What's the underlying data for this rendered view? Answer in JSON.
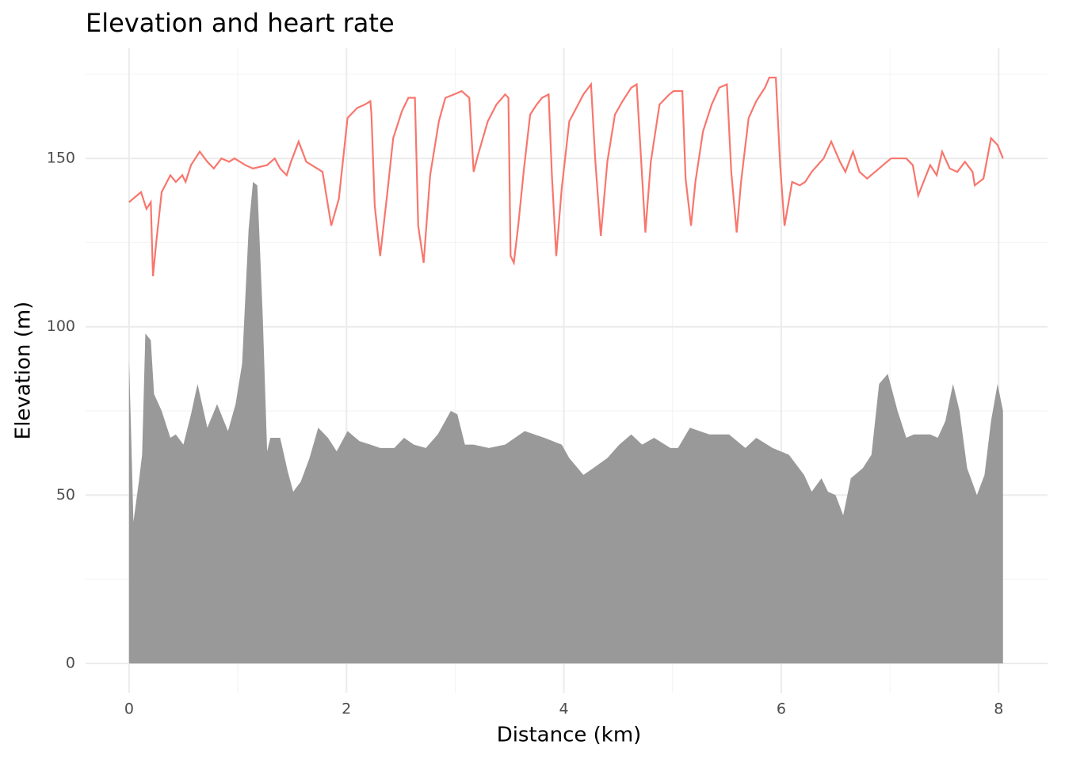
{
  "chart_data": {
    "type": "area-line",
    "title": "Elevation and heart rate",
    "x_label": "Distance (km)",
    "y_label": "Elevation (m)",
    "xlim": [
      -0.4,
      8.45
    ],
    "ylim": [
      -8.7,
      182.7
    ],
    "xticks": [
      0,
      2,
      4,
      6,
      8
    ],
    "yticks": [
      0,
      50,
      100,
      150
    ],
    "xticks_minor": [
      1,
      3,
      5,
      7
    ],
    "yticks_minor": [
      25,
      75,
      125,
      175
    ],
    "grid": true,
    "series": [
      {
        "type": "area",
        "color": "#999999",
        "x": [
          0,
          0.02,
          0.04,
          0.09,
          0.12,
          0.15,
          0.2,
          0.23,
          0.3,
          0.38,
          0.43,
          0.5,
          0.57,
          0.63,
          0.72,
          0.81,
          0.91,
          0.98,
          1.04,
          1.1,
          1.14,
          1.18,
          1.23,
          1.27,
          1.3,
          1.39,
          1.46,
          1.51,
          1.58,
          1.66,
          1.74,
          1.83,
          1.91,
          2.01,
          2.12,
          2.22,
          2.31,
          2.44,
          2.53,
          2.62,
          2.73,
          2.84,
          2.96,
          3.02,
          3.09,
          3.17,
          3.31,
          3.46,
          3.64,
          3.82,
          3.98,
          4.05,
          4.18,
          4.27,
          4.4,
          4.51,
          4.62,
          4.72,
          4.83,
          4.98,
          5.05,
          5.16,
          5.34,
          5.52,
          5.67,
          5.77,
          5.92,
          6.07,
          6.21,
          6.28,
          6.37,
          6.43,
          6.5,
          6.57,
          6.64,
          6.75,
          6.83,
          6.9,
          6.98,
          7.07,
          7.15,
          7.22,
          7.3,
          7.37,
          7.44,
          7.51,
          7.58,
          7.64,
          7.71,
          7.8,
          7.87,
          7.93,
          7.99,
          8.04
        ],
        "values": [
          90,
          67,
          42,
          54,
          62,
          98,
          96,
          80,
          75,
          67,
          68,
          65,
          74,
          83,
          70,
          77,
          69,
          77,
          89,
          129,
          143,
          142,
          103,
          63,
          67,
          67,
          57,
          51,
          54,
          61,
          70,
          67,
          63,
          69,
          66,
          65,
          64,
          64,
          67,
          65,
          64,
          68,
          75,
          74,
          65,
          65,
          64,
          65,
          69,
          67,
          65,
          61,
          56,
          58,
          61,
          65,
          68,
          65,
          67,
          64,
          64,
          70,
          68,
          68,
          64,
          67,
          64,
          62,
          56,
          51,
          55,
          51,
          50,
          44,
          55,
          58,
          62,
          83,
          86,
          75,
          67,
          68,
          68,
          68,
          67,
          72,
          83,
          75,
          58,
          50,
          56,
          72,
          83,
          75
        ]
      },
      {
        "type": "line",
        "color": "#F8766D",
        "x": [
          0,
          0.11,
          0.14,
          0.16,
          0.2,
          0.22,
          0.25,
          0.3,
          0.38,
          0.43,
          0.49,
          0.52,
          0.57,
          0.65,
          0.72,
          0.78,
          0.85,
          0.92,
          0.97,
          1.07,
          1.14,
          1.27,
          1.34,
          1.39,
          1.45,
          1.49,
          1.56,
          1.63,
          1.68,
          1.78,
          1.86,
          1.93,
          2.01,
          2.1,
          2.17,
          2.22,
          2.23,
          2.26,
          2.31,
          2.37,
          2.43,
          2.51,
          2.57,
          2.63,
          2.66,
          2.71,
          2.77,
          2.85,
          2.91,
          2.99,
          3.06,
          3.13,
          3.17,
          3.21,
          3.3,
          3.38,
          3.46,
          3.49,
          3.51,
          3.54,
          3.58,
          3.63,
          3.69,
          3.75,
          3.8,
          3.86,
          3.89,
          3.93,
          3.98,
          4.05,
          4.18,
          4.25,
          4.29,
          4.34,
          4.4,
          4.47,
          4.54,
          4.62,
          4.67,
          4.71,
          4.75,
          4.8,
          4.88,
          4.97,
          5.01,
          5.09,
          5.12,
          5.17,
          5.21,
          5.28,
          5.36,
          5.43,
          5.5,
          5.54,
          5.59,
          5.63,
          5.7,
          5.77,
          5.85,
          5.89,
          5.95,
          5.99,
          6.03,
          6.1,
          6.17,
          6.22,
          6.28,
          6.39,
          6.46,
          6.54,
          6.59,
          6.66,
          6.72,
          6.79,
          6.9,
          7.01,
          7.15,
          7.21,
          7.26,
          7.37,
          7.43,
          7.48,
          7.55,
          7.62,
          7.69,
          7.76,
          7.78,
          7.86,
          7.93,
          7.99,
          8.04
        ],
        "values": [
          137,
          140,
          137,
          135,
          137,
          115,
          125,
          140,
          145,
          143,
          145,
          143,
          148,
          152,
          149,
          147,
          150,
          149,
          150,
          148,
          147,
          148,
          150,
          147,
          145,
          149,
          155,
          149,
          148,
          146,
          130,
          138,
          162,
          165,
          166,
          167,
          163,
          136,
          121,
          138,
          156,
          164,
          168,
          168,
          130,
          119,
          145,
          161,
          168,
          169,
          170,
          168,
          146,
          151,
          161,
          166,
          169,
          168,
          121,
          119,
          130,
          146,
          163,
          166,
          168,
          169,
          145,
          121,
          141,
          161,
          169,
          172,
          149,
          127,
          149,
          163,
          167,
          171,
          172,
          150,
          128,
          149,
          166,
          169,
          170,
          170,
          144,
          130,
          143,
          158,
          166,
          171,
          172,
          146,
          128,
          143,
          162,
          167,
          171,
          174,
          174,
          148,
          130,
          143,
          142,
          143,
          146,
          150,
          155,
          149,
          146,
          152,
          146,
          144,
          147,
          150,
          150,
          148,
          139,
          148,
          145,
          152,
          147,
          146,
          149,
          146,
          142,
          144,
          156,
          154,
          150
        ]
      }
    ]
  }
}
